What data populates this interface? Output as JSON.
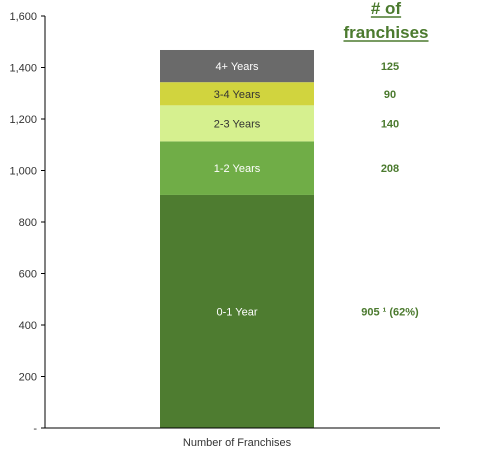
{
  "chart_data": {
    "type": "bar",
    "stacked": true,
    "categories": [
      "Number of Franchises"
    ],
    "series": [
      {
        "name": "0-1 Year",
        "values": [
          905
        ],
        "color": "#4e7c30",
        "count_label": "905 ¹  (62%)"
      },
      {
        "name": "1-2 Years",
        "values": [
          208
        ],
        "color": "#70ad47",
        "count_label": "208"
      },
      {
        "name": "2-3 Years",
        "values": [
          140
        ],
        "color": "#d6f08f",
        "count_label": "140"
      },
      {
        "name": "3-4 Years",
        "values": [
          90
        ],
        "color": "#d1d43e",
        "count_label": "90"
      },
      {
        "name": "4+ Years",
        "values": [
          125
        ],
        "color": "#6a6a6a",
        "count_label": "125"
      }
    ],
    "ylim": [
      0,
      1600
    ],
    "yticks": [
      0,
      200,
      400,
      600,
      800,
      1000,
      1200,
      1400,
      1600
    ],
    "ytick_labels": [
      "-",
      "200",
      "400",
      "600",
      "800",
      "1,000",
      "1,200",
      "1,400",
      "1,600"
    ],
    "column_header": [
      "# of",
      "franchises"
    ],
    "grid": false
  }
}
